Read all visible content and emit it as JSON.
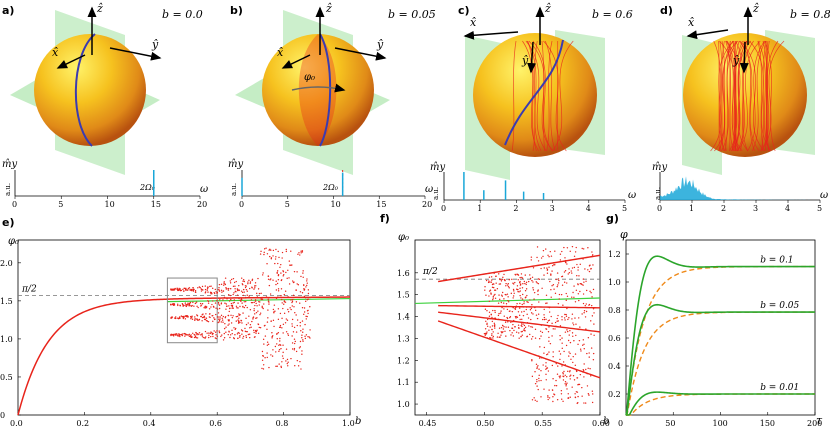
{
  "panels": {
    "a": {
      "label": "a)",
      "b": "b = 0.0",
      "my": "m̂y",
      "au": "a.u.",
      "omega": "ω",
      "peak": "2Ω₀",
      "xticks": [
        "0",
        "5",
        "10",
        "15",
        "20"
      ],
      "xmax": 20,
      "peaks": [
        {
          "x": 15,
          "h": 1.0
        }
      ],
      "dashed": 15
    },
    "b": {
      "label": "b)",
      "b": "b = 0.05",
      "my": "m̂y",
      "au": "a.u.",
      "omega": "ω",
      "peak": "2Ω₀",
      "phi": "φ₀",
      "xticks": [
        "0",
        "5",
        "10",
        "15",
        "20"
      ],
      "xmax": 20,
      "peaks": [
        {
          "x": 0,
          "h": 0.7
        },
        {
          "x": 11,
          "h": 0.9
        }
      ],
      "dashed": 11
    },
    "c": {
      "label": "c)",
      "b": "b = 0.6",
      "my": "m̂y",
      "au": "a.u.",
      "omega": "ω",
      "xticks": [
        "0",
        "1",
        "2",
        "3",
        "4",
        "5"
      ],
      "xmax": 5,
      "peaks": [
        {
          "x": 0.55,
          "h": 1.0
        },
        {
          "x": 1.1,
          "h": 0.35
        },
        {
          "x": 1.7,
          "h": 0.7
        },
        {
          "x": 2.2,
          "h": 0.3
        },
        {
          "x": 2.75,
          "h": 0.25
        }
      ]
    },
    "d": {
      "label": "d)",
      "b": "b = 0.8",
      "my": "m̂y",
      "au": "a.u.",
      "omega": "ω",
      "xticks": [
        "0",
        "1",
        "2",
        "3",
        "4",
        "5"
      ],
      "xmax": 5
    },
    "e": {
      "label": "e)",
      "ylabel": "φ₀",
      "xlabel": "b",
      "pi2": "π/2",
      "xticks": [
        "0.0",
        "0.2",
        "0.4",
        "0.6",
        "0.8",
        "1.0"
      ],
      "yticks": [
        "0",
        "0.5",
        "1.0",
        "1.5",
        "2.0"
      ],
      "xlim": [
        0,
        1
      ],
      "ylim": [
        0,
        2.3
      ]
    },
    "f": {
      "label": "f)",
      "ylabel": "φ₀",
      "xlabel": "b",
      "pi2": "π/2",
      "xticks": [
        "0.45",
        "0.50",
        "0.55",
        "0.60"
      ],
      "yticks": [
        "1.0",
        "1.1",
        "1.2",
        "1.3",
        "1.4",
        "1.5",
        "1.6"
      ],
      "xlim": [
        0.44,
        0.6
      ],
      "ylim": [
        0.95,
        1.75
      ]
    },
    "g": {
      "label": "g)",
      "ylabel": "φ",
      "xlabel": "τ",
      "xticks": [
        "0",
        "50",
        "100",
        "150",
        "200"
      ],
      "yticks": [
        "0.2",
        "0.4",
        "0.6",
        "0.8",
        "1.0",
        "1.2"
      ],
      "curves": [
        {
          "name": "b = 0.1",
          "level": 1.11
        },
        {
          "name": "b = 0.05",
          "level": 0.785
        },
        {
          "name": "b = 0.01",
          "level": 0.2
        }
      ]
    }
  },
  "axes": {
    "x": "x̂",
    "y": "ŷ",
    "z": "ẑ"
  },
  "colors": {
    "sphere": "#f2b81e",
    "trajectory": "#e8241b",
    "blue": "#3b3bb0",
    "plane": "#7fd87f",
    "spectrum": "#1aa7d8",
    "green": "#2ba52b",
    "orange": "#ef8a1a",
    "bracket": "#888888"
  }
}
